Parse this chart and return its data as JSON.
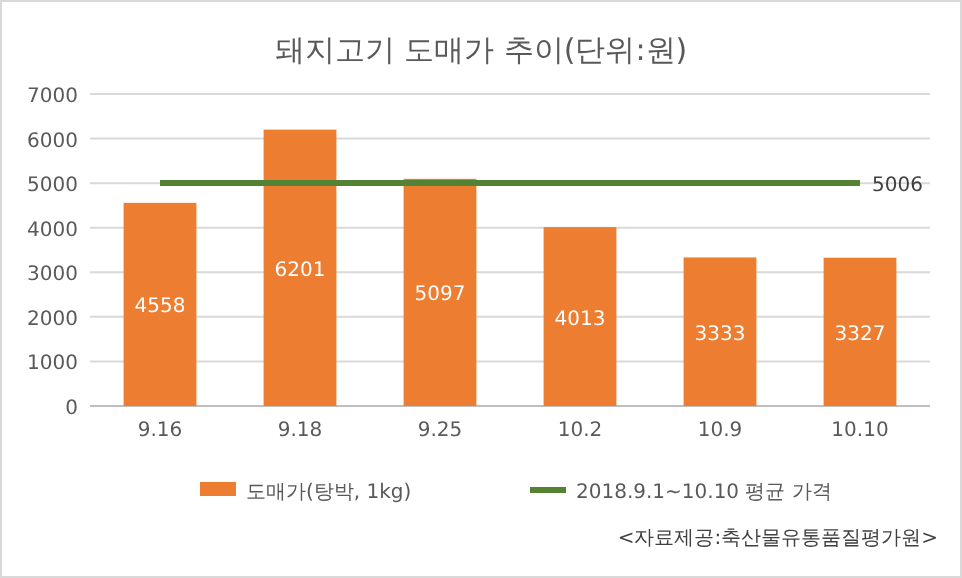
{
  "chart_data": {
    "type": "bar",
    "title": "돼지고기 도매가 추이(단위:원)",
    "categories": [
      "9.16",
      "9.18",
      "9.25",
      "10.2",
      "10.9",
      "10.10"
    ],
    "series": [
      {
        "name": "도매가(탕박, 1kg)",
        "color": "#ed7d31",
        "values": [
          4558,
          6201,
          5097,
          4013,
          3333,
          3327
        ],
        "value_labels": [
          "4558",
          "6201",
          "5097",
          "4013",
          "3333",
          "3327"
        ]
      },
      {
        "name": "2018.9.1~10.10 평균 가격",
        "type": "line",
        "color": "#548235",
        "values": [
          5006,
          5006,
          5006,
          5006,
          5006,
          5006
        ],
        "value_labels": [
          null,
          null,
          null,
          null,
          null,
          "5006"
        ]
      }
    ],
    "ylim": [
      0,
      7000
    ],
    "yticks": [
      0,
      1000,
      2000,
      3000,
      4000,
      5000,
      6000,
      7000
    ],
    "grid": "y",
    "legend": "bottom",
    "marker": "none",
    "annotations": [
      "<자료제공:축산물유통품질평가원>"
    ]
  }
}
